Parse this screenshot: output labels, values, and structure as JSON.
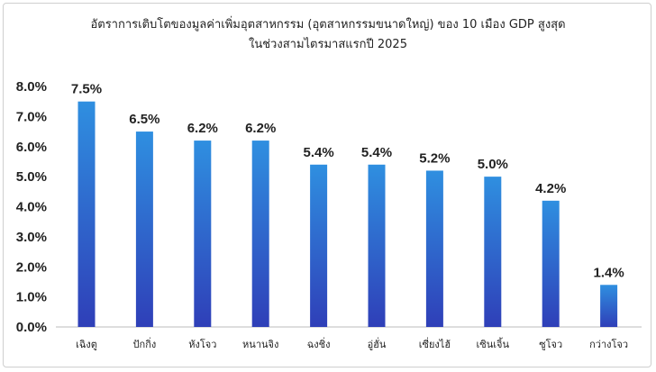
{
  "chart_data": {
    "type": "bar",
    "title": "อัตราการเติบโตของมูลค่าเพิ่มอุตสาหกรรม (อุตสาหกรรมขนาดใหญ่) ของ 10 เมือง GDP สูงสุด",
    "subtitle": "ในช่วงสามไตรมาสแรกปี 2025",
    "categories": [
      "เฉิงตู",
      "ปักกิ่ง",
      "หังโจว",
      "หนานจิง",
      "ฉงชิ่ง",
      "อู่ฮั่น",
      "เซี่ยงไฮ้",
      "เซินเจิ้น",
      "ซูโจว",
      "กว่างโจว"
    ],
    "values": [
      7.5,
      6.5,
      6.2,
      6.2,
      5.4,
      5.4,
      5.2,
      5.0,
      4.2,
      1.4
    ],
    "value_labels": [
      "7.5%",
      "6.5%",
      "6.2%",
      "6.2%",
      "5.4%",
      "5.4%",
      "5.2%",
      "5.0%",
      "4.2%",
      "1.4%"
    ],
    "y_ticks": [
      "0.0%",
      "1.0%",
      "2.0%",
      "3.0%",
      "4.0%",
      "5.0%",
      "6.0%",
      "7.0%",
      "8.0%"
    ],
    "ylim": [
      0,
      8
    ],
    "grid": false,
    "bar_color_top": "#2f8fe0",
    "bar_color_bottom": "#2f3fb8"
  }
}
